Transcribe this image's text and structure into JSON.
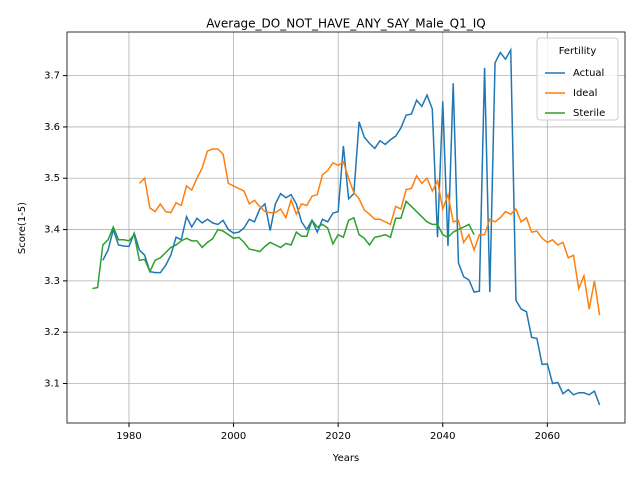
{
  "chart_data": {
    "type": "line",
    "title": "Average_DO_NOT_HAVE_ANY_SAY_Male_Q1_IQ",
    "xlabel": "Years",
    "ylabel": "Score(1-5)",
    "legend_title": "Fertility",
    "legend": "upper right",
    "grid": true,
    "x": [
      1973,
      1974,
      1975,
      1976,
      1977,
      1978,
      1979,
      1980,
      1981,
      1982,
      1983,
      1984,
      1985,
      1986,
      1987,
      1988,
      1989,
      1990,
      1991,
      1992,
      1993,
      1994,
      1995,
      1996,
      1997,
      1998,
      1999,
      2000,
      2001,
      2002,
      2003,
      2004,
      2005,
      2006,
      2007,
      2008,
      2009,
      2010,
      2011,
      2012,
      2013,
      2014,
      2015,
      2016,
      2017,
      2018,
      2019,
      2020,
      2021,
      2022,
      2023,
      2024,
      2025,
      2026,
      2027,
      2028,
      2029,
      2030,
      2031,
      2032,
      2033,
      2034,
      2035,
      2036,
      2037,
      2038,
      2039,
      2040,
      2041,
      2042,
      2043,
      2044,
      2045,
      2046,
      2047,
      2048,
      2049,
      2050,
      2051,
      2052,
      2053,
      2054,
      2055,
      2056,
      2057,
      2058,
      2059,
      2060,
      2061,
      2062,
      2063,
      2064,
      2065,
      2066,
      2067,
      2068,
      2069,
      2070
    ],
    "series": [
      {
        "name": "Actual",
        "color": "#1f77b4",
        "values": [
          null,
          null,
          3.34,
          3.36,
          3.4,
          3.37,
          3.368,
          3.367,
          3.393,
          3.36,
          3.35,
          3.318,
          3.316,
          3.316,
          3.33,
          3.35,
          3.385,
          3.38,
          3.425,
          3.405,
          3.422,
          3.413,
          3.42,
          3.413,
          3.41,
          3.418,
          3.4,
          3.393,
          3.395,
          3.403,
          3.42,
          3.415,
          3.44,
          3.45,
          3.398,
          3.45,
          3.47,
          3.462,
          3.468,
          3.45,
          3.415,
          3.4,
          3.418,
          3.395,
          3.42,
          3.415,
          3.432,
          3.435,
          3.563,
          3.46,
          3.47,
          3.61,
          3.58,
          3.568,
          3.558,
          3.573,
          3.566,
          3.575,
          3.582,
          3.598,
          3.623,
          3.625,
          3.652,
          3.64,
          3.662,
          3.635,
          3.385,
          3.65,
          3.368,
          3.685,
          3.335,
          3.308,
          3.302,
          3.278,
          3.28,
          3.715,
          3.278,
          3.725,
          3.745,
          3.732,
          3.75,
          3.262,
          3.245,
          3.24,
          3.19,
          3.188,
          3.137,
          3.138,
          3.1,
          3.102,
          3.08,
          3.088,
          3.078,
          3.082,
          3.082,
          3.078,
          3.085,
          3.058
        ]
      },
      {
        "name": "Ideal",
        "color": "#ff7f0e",
        "values": [
          null,
          null,
          null,
          null,
          null,
          null,
          null,
          null,
          null,
          3.49,
          3.5,
          3.442,
          3.435,
          3.45,
          3.435,
          3.433,
          3.452,
          3.447,
          3.485,
          3.477,
          3.5,
          3.52,
          3.553,
          3.557,
          3.557,
          3.547,
          3.49,
          3.485,
          3.48,
          3.475,
          3.45,
          3.457,
          3.445,
          3.435,
          3.433,
          3.433,
          3.44,
          3.423,
          3.458,
          3.43,
          3.45,
          3.447,
          3.465,
          3.468,
          3.507,
          3.515,
          3.53,
          3.525,
          3.532,
          3.5,
          3.472,
          3.46,
          3.438,
          3.43,
          3.42,
          3.42,
          3.415,
          3.41,
          3.445,
          3.44,
          3.478,
          3.48,
          3.505,
          3.49,
          3.5,
          3.475,
          3.495,
          3.44,
          3.468,
          3.415,
          3.418,
          3.375,
          3.39,
          3.36,
          3.39,
          3.39,
          3.42,
          3.415,
          3.423,
          3.435,
          3.43,
          3.44,
          3.415,
          3.423,
          3.395,
          3.397,
          3.383,
          3.375,
          3.38,
          3.37,
          3.375,
          3.345,
          3.35,
          3.285,
          3.31,
          3.245,
          3.3,
          3.233
        ]
      },
      {
        "name": "Sterile",
        "color": "#2ca02c",
        "values": [
          3.285,
          3.287,
          3.37,
          3.38,
          3.405,
          3.38,
          3.38,
          3.378,
          3.39,
          3.34,
          3.342,
          3.318,
          3.34,
          3.345,
          3.355,
          3.365,
          3.37,
          3.378,
          3.383,
          3.378,
          3.378,
          3.365,
          3.375,
          3.382,
          3.4,
          3.397,
          3.39,
          3.383,
          3.385,
          3.375,
          3.362,
          3.36,
          3.357,
          3.367,
          3.375,
          3.37,
          3.365,
          3.373,
          3.37,
          3.395,
          3.387,
          3.387,
          3.418,
          3.405,
          3.41,
          3.403,
          3.372,
          3.39,
          3.385,
          3.418,
          3.423,
          3.39,
          3.383,
          3.37,
          3.385,
          3.387,
          3.39,
          3.385,
          3.422,
          3.422,
          3.455,
          3.445,
          3.435,
          3.425,
          3.415,
          3.41,
          3.41,
          3.39,
          3.385,
          3.395,
          3.4,
          3.405,
          3.41,
          3.39,
          null,
          null,
          null,
          null,
          null,
          null,
          null,
          null,
          null,
          null,
          null,
          null,
          null,
          null,
          null,
          null,
          null,
          null,
          null,
          null,
          null,
          null,
          null,
          null
        ]
      }
    ],
    "xlim": [
      1968.15,
      2074.85
    ],
    "xticks": [
      1980,
      2000,
      2020,
      2040,
      2060
    ],
    "ylim": [
      3.023,
      3.785
    ],
    "yticks": [
      3.1,
      3.2,
      3.3,
      3.4,
      3.5,
      3.6,
      3.7
    ]
  }
}
